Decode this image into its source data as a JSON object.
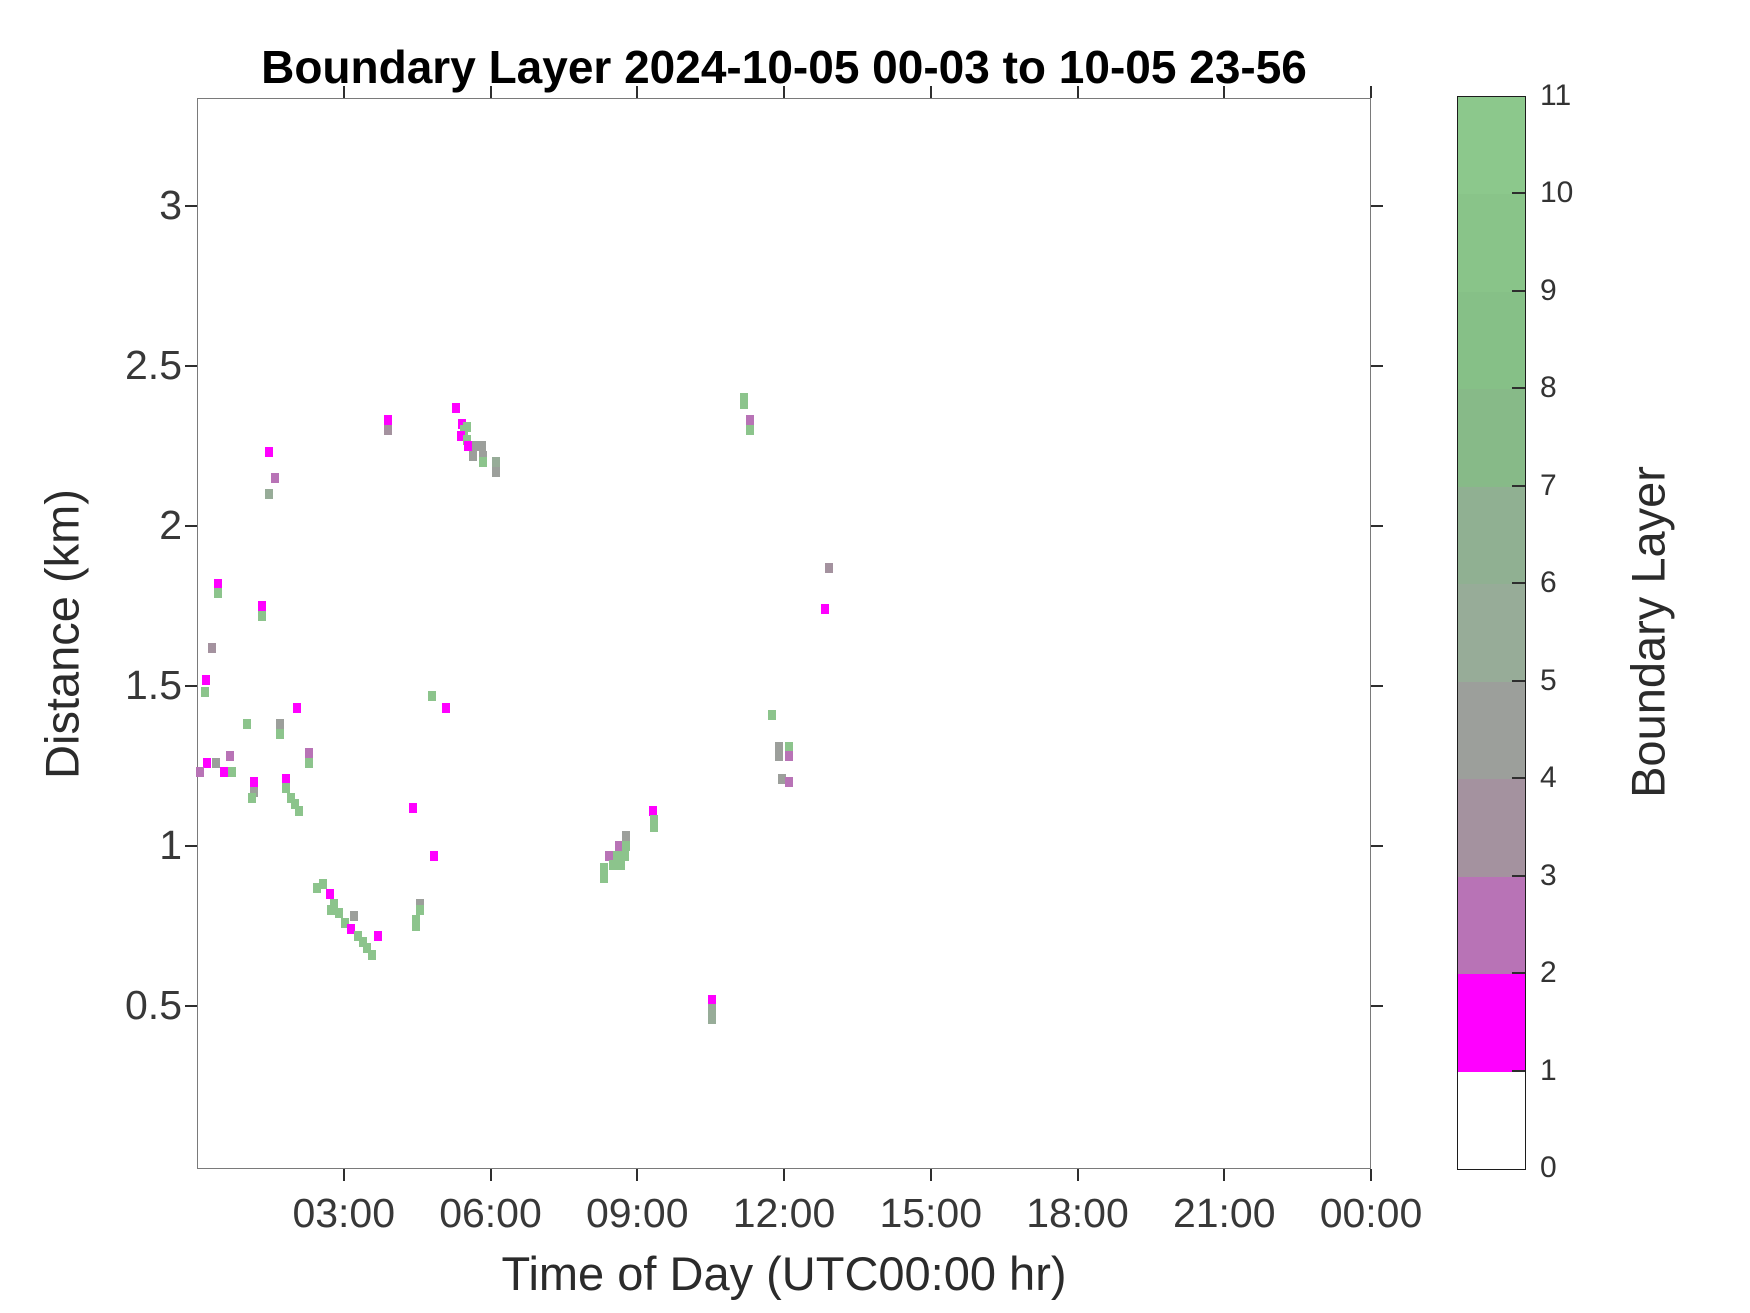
{
  "title": "Boundary Layer 2024-10-05 00-03 to 10-05 23-56",
  "x_axis": {
    "label": "Time of Day (UTC00:00 hr)",
    "tick_labels": [
      "03:00",
      "06:00",
      "09:00",
      "12:00",
      "15:00",
      "18:00",
      "21:00",
      "00:00"
    ],
    "tick_hours": [
      3,
      6,
      9,
      12,
      15,
      18,
      21,
      24
    ],
    "range_hours": [
      0,
      24
    ]
  },
  "y_axis": {
    "label": "Distance (km)",
    "tick_labels": [
      "0.5",
      "1",
      "1.5",
      "2",
      "2.5",
      "3"
    ],
    "tick_values": [
      0.5,
      1,
      1.5,
      2,
      2.5,
      3
    ],
    "range_km": [
      0,
      3.35
    ]
  },
  "colorbar": {
    "label": "Boundary Layer",
    "tick_labels": [
      "0",
      "1",
      "2",
      "3",
      "4",
      "5",
      "6",
      "7",
      "8",
      "9",
      "10",
      "11"
    ],
    "tick_values": [
      0,
      1,
      2,
      3,
      4,
      5,
      6,
      7,
      8,
      9,
      10,
      11
    ],
    "segments": [
      {
        "from": 0,
        "to": 1,
        "color": "#ffffff"
      },
      {
        "from": 1,
        "to": 2,
        "color": "#ff00ff"
      },
      {
        "from": 2,
        "to": 3,
        "color": "#b873b6"
      },
      {
        "from": 3,
        "to": 4,
        "color": "#a4929f"
      },
      {
        "from": 4,
        "to": 5,
        "color": "#9c9f9b"
      },
      {
        "from": 5,
        "to": 6,
        "color": "#97ac98"
      },
      {
        "from": 6,
        "to": 7,
        "color": "#90b092"
      },
      {
        "from": 7,
        "to": 8,
        "color": "#87ba88"
      },
      {
        "from": 8,
        "to": 9,
        "color": "#86c087"
      },
      {
        "from": 9,
        "to": 10,
        "color": "#89c489"
      },
      {
        "from": 10,
        "to": 11,
        "color": "#8cc88c"
      }
    ],
    "level_colors": {
      "1.5": "#ff00ff",
      "2.5": "#b873b6",
      "3.5": "#a4929f",
      "4.5": "#9c9f9b",
      "5.5": "#97ac98",
      "7": "#8cc48c"
    }
  },
  "chart_data": {
    "type": "heatmap",
    "title": "Boundary Layer 2024-10-05 00-03 to 10-05 23-56",
    "xlabel": "Time of Day (UTC00:00 hr)",
    "ylabel": "Distance (km)",
    "zlabel": "Boundary Layer",
    "xlim_hours": [
      0,
      24
    ],
    "ylim_km": [
      0,
      3.35
    ],
    "zlim": [
      0,
      11
    ],
    "grid": false,
    "points_format": [
      "hour_utc",
      "distance_km",
      "boundary_layer_level"
    ],
    "points": [
      [
        0.43,
        1.82,
        1.5
      ],
      [
        0.43,
        1.79,
        7
      ],
      [
        1.32,
        1.75,
        1.5
      ],
      [
        1.32,
        1.72,
        7
      ],
      [
        0.3,
        1.62,
        3.5
      ],
      [
        0.18,
        1.52,
        1.5
      ],
      [
        0.16,
        1.48,
        7
      ],
      [
        2.04,
        1.43,
        1.5
      ],
      [
        1.02,
        1.38,
        7
      ],
      [
        1.69,
        1.38,
        4.5
      ],
      [
        1.69,
        1.35,
        7
      ],
      [
        2.28,
        1.29,
        2.5
      ],
      [
        2.28,
        1.26,
        7
      ],
      [
        0.67,
        1.28,
        2.5
      ],
      [
        0.2,
        1.26,
        1.5
      ],
      [
        0.38,
        1.26,
        4.5
      ],
      [
        0.06,
        1.23,
        2.5
      ],
      [
        0.55,
        1.23,
        1.5
      ],
      [
        0.71,
        1.23,
        7
      ],
      [
        1.16,
        1.2,
        1.5
      ],
      [
        1.16,
        1.17,
        4.5
      ],
      [
        1.12,
        1.15,
        7
      ],
      [
        1.82,
        1.21,
        1.5
      ],
      [
        1.82,
        1.18,
        7
      ],
      [
        1.92,
        1.15,
        7
      ],
      [
        2.0,
        1.13,
        7
      ],
      [
        2.08,
        1.11,
        7
      ],
      [
        1.47,
        2.23,
        1.5
      ],
      [
        1.59,
        2.15,
        2.5
      ],
      [
        1.47,
        2.1,
        5.5
      ],
      [
        3.9,
        2.33,
        1.5
      ],
      [
        3.9,
        2.3,
        3.5
      ],
      [
        5.29,
        2.37,
        1.5
      ],
      [
        5.41,
        2.32,
        1.5
      ],
      [
        5.51,
        2.31,
        7
      ],
      [
        5.45,
        2.3,
        7
      ],
      [
        5.39,
        2.28,
        1.5
      ],
      [
        5.51,
        2.27,
        7
      ],
      [
        5.55,
        2.25,
        1.5
      ],
      [
        5.7,
        2.25,
        4.5
      ],
      [
        5.82,
        2.25,
        4.5
      ],
      [
        5.64,
        2.22,
        4.5
      ],
      [
        5.84,
        2.22,
        4.5
      ],
      [
        5.84,
        2.2,
        7
      ],
      [
        6.11,
        2.2,
        5.5
      ],
      [
        6.11,
        2.17,
        4.5
      ],
      [
        9.33,
        1.11,
        1.5
      ],
      [
        9.35,
        1.08,
        7
      ],
      [
        9.35,
        1.06,
        7
      ],
      [
        8.76,
        1.03,
        4.5
      ],
      [
        8.62,
        1.0,
        2.5
      ],
      [
        8.76,
        1.0,
        7
      ],
      [
        8.43,
        0.97,
        2.5
      ],
      [
        8.58,
        0.97,
        7
      ],
      [
        8.74,
        0.97,
        7
      ],
      [
        8.5,
        0.94,
        7
      ],
      [
        8.66,
        0.94,
        7
      ],
      [
        8.33,
        0.93,
        7
      ],
      [
        8.33,
        0.9,
        7
      ],
      [
        10.52,
        0.52,
        1.5
      ],
      [
        10.52,
        0.49,
        5.5
      ],
      [
        10.52,
        0.46,
        5.5
      ],
      [
        11.19,
        2.4,
        7
      ],
      [
        11.19,
        2.38,
        7
      ],
      [
        11.31,
        2.33,
        2.5
      ],
      [
        11.31,
        2.3,
        7
      ],
      [
        12.93,
        1.87,
        3.5
      ],
      [
        12.83,
        1.74,
        1.5
      ],
      [
        11.76,
        1.41,
        7
      ],
      [
        11.89,
        1.31,
        4.5
      ],
      [
        11.89,
        1.28,
        4.5
      ],
      [
        12.11,
        1.31,
        7
      ],
      [
        12.11,
        1.28,
        2.5
      ],
      [
        11.95,
        1.21,
        4.5
      ],
      [
        12.11,
        1.2,
        2.5
      ],
      [
        4.8,
        1.47,
        7
      ],
      [
        5.1,
        1.43,
        1.5
      ],
      [
        4.41,
        1.12,
        1.5
      ],
      [
        4.84,
        0.97,
        1.5
      ],
      [
        4.55,
        0.82,
        4.5
      ],
      [
        4.55,
        0.8,
        7
      ],
      [
        4.47,
        0.77,
        7
      ],
      [
        4.47,
        0.75,
        7
      ],
      [
        2.57,
        0.88,
        7
      ],
      [
        2.45,
        0.87,
        7
      ],
      [
        2.71,
        0.85,
        1.5
      ],
      [
        2.8,
        0.82,
        7
      ],
      [
        2.73,
        0.8,
        7
      ],
      [
        2.9,
        0.79,
        7
      ],
      [
        3.2,
        0.78,
        4.5
      ],
      [
        3.02,
        0.76,
        7
      ],
      [
        3.14,
        0.74,
        1.5
      ],
      [
        3.29,
        0.72,
        7
      ],
      [
        3.69,
        0.72,
        1.5
      ],
      [
        3.39,
        0.7,
        7
      ],
      [
        3.47,
        0.68,
        7
      ],
      [
        3.57,
        0.66,
        7
      ]
    ]
  }
}
